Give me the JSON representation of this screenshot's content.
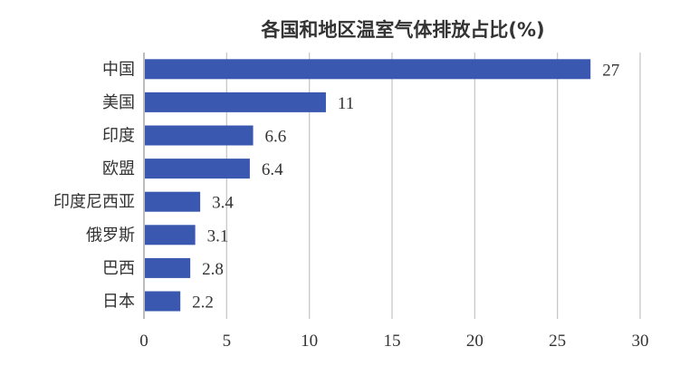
{
  "chart_data": {
    "type": "bar",
    "orientation": "horizontal",
    "title": "各国和地区温室气体排放占比(%)",
    "categories": [
      "中国",
      "美国",
      "印度",
      "欧盟",
      "印度尼西亚",
      "俄罗斯",
      "巴西",
      "日本"
    ],
    "values": [
      27,
      11,
      6.6,
      6.4,
      3.4,
      3.1,
      2.8,
      2.2
    ],
    "value_labels": [
      "27",
      "11",
      "6.6",
      "6.4",
      "3.4",
      "3.1",
      "2.8",
      "2.2"
    ],
    "xlabel": "",
    "ylabel": "",
    "xlim": [
      0,
      30
    ],
    "x_ticks": [
      0,
      5,
      10,
      15,
      20,
      25,
      30
    ],
    "grid": "vertical",
    "legend": "none",
    "bar_color": "#3a58b0"
  }
}
